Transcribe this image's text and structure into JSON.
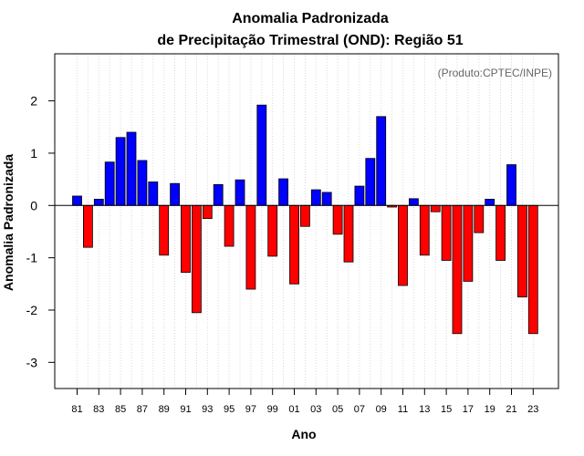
{
  "chart_data": {
    "type": "bar",
    "title": "Anomalia Padronizada",
    "subtitle": "de Precipitação Trimestral (OND): Região 51",
    "xlabel": "Ano",
    "ylabel": "Anomalia Padronizada",
    "credit": "(Produto:CPTEC/INPE)",
    "ylim": [
      -3.5,
      2.9
    ],
    "yticks": [
      -3,
      -2,
      -1,
      0,
      1,
      2
    ],
    "ytick_labels": [
      "-3",
      "-2",
      "-1",
      "0",
      "1",
      "2"
    ],
    "categories": [
      "81",
      "82",
      "83",
      "84",
      "85",
      "86",
      "87",
      "88",
      "89",
      "90",
      "91",
      "92",
      "93",
      "94",
      "95",
      "96",
      "97",
      "98",
      "99",
      "00",
      "01",
      "02",
      "03",
      "04",
      "05",
      "06",
      "07",
      "08",
      "09",
      "10",
      "11",
      "12",
      "13",
      "14",
      "15",
      "16",
      "17",
      "18",
      "19",
      "20",
      "21",
      "22",
      "23"
    ],
    "xtick_labels": [
      "81",
      "83",
      "85",
      "87",
      "89",
      "91",
      "93",
      "95",
      "97",
      "99",
      "01",
      "03",
      "05",
      "07",
      "09",
      "11",
      "13",
      "15",
      "17",
      "19",
      "21",
      "23"
    ],
    "values": [
      0.18,
      -0.8,
      0.12,
      0.83,
      1.3,
      1.4,
      0.86,
      0.45,
      -0.95,
      0.42,
      -1.28,
      -2.05,
      -0.25,
      0.4,
      -0.78,
      0.49,
      -1.6,
      1.92,
      -0.97,
      0.51,
      -1.5,
      -0.4,
      0.3,
      0.25,
      -0.55,
      -1.08,
      0.37,
      0.9,
      1.7,
      -0.03,
      -1.53,
      0.13,
      -0.95,
      -0.12,
      -1.05,
      -2.45,
      -1.45,
      -0.52,
      0.12,
      -1.05,
      0.78,
      -1.75,
      -2.45
    ],
    "colors": {
      "positive": "#0000ff",
      "negative": "#ff0000"
    },
    "grid": true
  }
}
